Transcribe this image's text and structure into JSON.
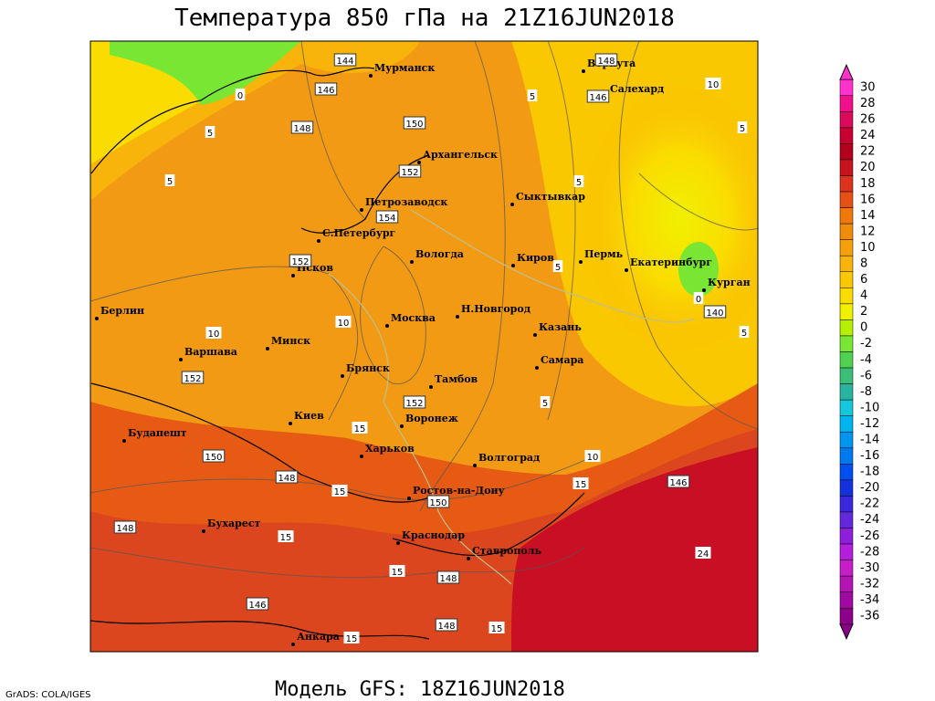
{
  "header": {
    "title": "Температура 850 гПа на 21Z16JUN2018"
  },
  "footer": {
    "model": "Модель GFS: 18Z16JUN2018",
    "credit": "GrADS: COLA/IGES"
  },
  "cities": [
    "Мурманск",
    "Воркута",
    "Салехард",
    "Архангельск",
    "Петрозаводск",
    "Сыктывкар",
    "С.Петербург",
    "Вологда",
    "Киров",
    "Пермь",
    "Екатеринбург",
    "Курган",
    "Псков",
    "Н.Новгород",
    "Берлин",
    "Москва",
    "Казань",
    "Минск",
    "Варшава",
    "Брянск",
    "Самара",
    "Тамбов",
    "Киев",
    "Воронеж",
    "Будапешт",
    "Харьков",
    "Волгоград",
    "Ростов-на-Дону",
    "Бухарест",
    "Краснодар",
    "Ставрополь",
    "Анкара"
  ],
  "contour_labels": [
    0,
    5,
    5,
    144,
    146,
    148,
    150,
    152,
    154,
    152,
    10,
    10,
    152,
    152,
    15,
    150,
    148,
    15,
    150,
    148,
    15,
    15,
    148,
    146,
    148,
    15,
    15,
    148,
    146,
    10,
    5,
    5,
    5,
    10,
    15,
    5,
    146,
    140,
    5,
    0,
    5,
    24
  ],
  "colorbar": {
    "levels": [
      30,
      28,
      26,
      24,
      22,
      20,
      18,
      16,
      14,
      12,
      10,
      8,
      6,
      4,
      2,
      0,
      -2,
      -4,
      -6,
      -8,
      -10,
      -12,
      -14,
      -16,
      -18,
      -20,
      -22,
      -24,
      -26,
      -28,
      -30,
      -32,
      -34,
      -36
    ],
    "colors": [
      "#ff33cc",
      "#f0108c",
      "#dc0a5a",
      "#c80032",
      "#b4001e",
      "#c8141e",
      "#dc321e",
      "#e65014",
      "#f0780a",
      "#f08c0a",
      "#f5a00a",
      "#f8b40a",
      "#fac800",
      "#fadc00",
      "#f0f000",
      "#b4f000",
      "#78e632",
      "#50d250",
      "#3cbe78",
      "#28b4a0",
      "#14c8dc",
      "#00b4f0",
      "#0096f0",
      "#0078f0",
      "#0050f0",
      "#1432dc",
      "#3c28dc",
      "#6428dc",
      "#8c1edc",
      "#b41edc",
      "#c81ec8",
      "#b414b4",
      "#a00aa0",
      "#8c008c"
    ]
  }
}
